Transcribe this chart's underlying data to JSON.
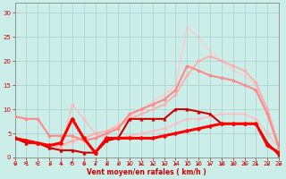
{
  "xlabel": "Vent moyen/en rafales ( km/h )",
  "xlim": [
    0,
    23
  ],
  "ylim": [
    0,
    32
  ],
  "yticks": [
    0,
    5,
    10,
    15,
    20,
    25,
    30
  ],
  "xticks": [
    0,
    1,
    2,
    3,
    4,
    5,
    6,
    7,
    8,
    9,
    10,
    11,
    12,
    13,
    14,
    15,
    16,
    17,
    18,
    19,
    20,
    21,
    22,
    23
  ],
  "background_color": "#cceee8",
  "grid_color": "#aacccc",
  "lines": [
    {
      "x": [
        0,
        1,
        2,
        3,
        4,
        5,
        6,
        7,
        8,
        9,
        10,
        11,
        12,
        13,
        14,
        15,
        16,
        17,
        18,
        19,
        20,
        21,
        22,
        23
      ],
      "y": [
        4,
        3.5,
        3,
        2.5,
        3,
        8,
        4,
        1,
        4,
        4,
        4,
        4,
        4,
        4.5,
        5,
        5.5,
        6,
        6.5,
        7,
        7,
        7,
        7,
        2.5,
        1
      ],
      "color": "#ff0000",
      "lw": 2.2,
      "marker": "D",
      "ms": 2.5,
      "zorder": 5
    },
    {
      "x": [
        0,
        1,
        2,
        3,
        4,
        5,
        6,
        7,
        8,
        9,
        10,
        11,
        12,
        13,
        14,
        15,
        16,
        17,
        18,
        19,
        20,
        21,
        22,
        23
      ],
      "y": [
        4,
        3,
        3,
        2,
        1.5,
        1.5,
        1,
        1,
        3.5,
        4,
        8,
        8,
        8,
        8,
        10,
        10,
        9.5,
        9,
        7,
        7,
        7,
        7,
        3,
        0.5
      ],
      "color": "#cc0000",
      "lw": 1.5,
      "marker": "^",
      "ms": 2.5,
      "zorder": 4
    },
    {
      "x": [
        0,
        1,
        2,
        3,
        4,
        5,
        6,
        7,
        8,
        9,
        10,
        11,
        12,
        13,
        14,
        15,
        16,
        17,
        18,
        19,
        20,
        21,
        22,
        23
      ],
      "y": [
        4,
        3.5,
        3,
        2.5,
        2,
        11,
        8,
        5,
        4,
        4,
        4.5,
        5,
        5.5,
        6,
        7,
        8,
        8,
        8.5,
        9,
        9,
        9,
        8,
        5,
        2
      ],
      "color": "#ffbbbb",
      "lw": 1.0,
      "marker": "D",
      "ms": 2.0,
      "zorder": 2
    },
    {
      "x": [
        0,
        1,
        2,
        3,
        4,
        5,
        6,
        7,
        8,
        9,
        10,
        11,
        12,
        13,
        14,
        15,
        16,
        17,
        18,
        19,
        20,
        21,
        22,
        23
      ],
      "y": [
        8.5,
        8,
        8,
        4.5,
        4.5,
        4.5,
        3.5,
        4,
        5,
        6,
        9,
        10,
        11,
        12,
        14,
        19,
        18,
        17,
        16.5,
        16,
        15,
        14,
        9,
        2
      ],
      "color": "#ff8888",
      "lw": 1.5,
      "marker": "D",
      "ms": 2.0,
      "zorder": 3
    },
    {
      "x": [
        0,
        1,
        2,
        3,
        4,
        5,
        6,
        7,
        8,
        9,
        10,
        11,
        12,
        13,
        14,
        15,
        16,
        17,
        18,
        19,
        20,
        21,
        22,
        23
      ],
      "y": [
        4,
        3,
        3,
        2.5,
        2.5,
        3.5,
        4,
        5,
        5.5,
        6.5,
        8,
        9,
        10,
        11,
        13,
        17,
        20,
        21,
        20,
        19,
        18,
        15.5,
        10,
        2.5
      ],
      "color": "#ffaaaa",
      "lw": 1.2,
      "marker": "D",
      "ms": 1.8,
      "zorder": 2
    },
    {
      "x": [
        0,
        1,
        2,
        3,
        4,
        5,
        6,
        7,
        8,
        9,
        10,
        11,
        12,
        13,
        14,
        15,
        16,
        17,
        18,
        19,
        20,
        21,
        22,
        23
      ],
      "y": [
        4,
        3,
        2.5,
        2.5,
        2,
        3,
        4,
        5,
        5.5,
        7,
        8.5,
        10,
        11.5,
        13,
        15,
        27,
        25,
        22,
        20,
        18,
        17,
        15,
        10,
        2
      ],
      "color": "#ffcccc",
      "lw": 1.0,
      "marker": "D",
      "ms": 1.5,
      "zorder": 1
    }
  ],
  "arrow_angles": [
    225,
    90,
    90,
    225,
    225,
    90,
    225,
    180,
    180,
    180,
    180,
    180,
    180,
    180,
    180,
    180,
    180,
    200,
    210,
    210,
    225,
    225,
    225,
    225
  ]
}
